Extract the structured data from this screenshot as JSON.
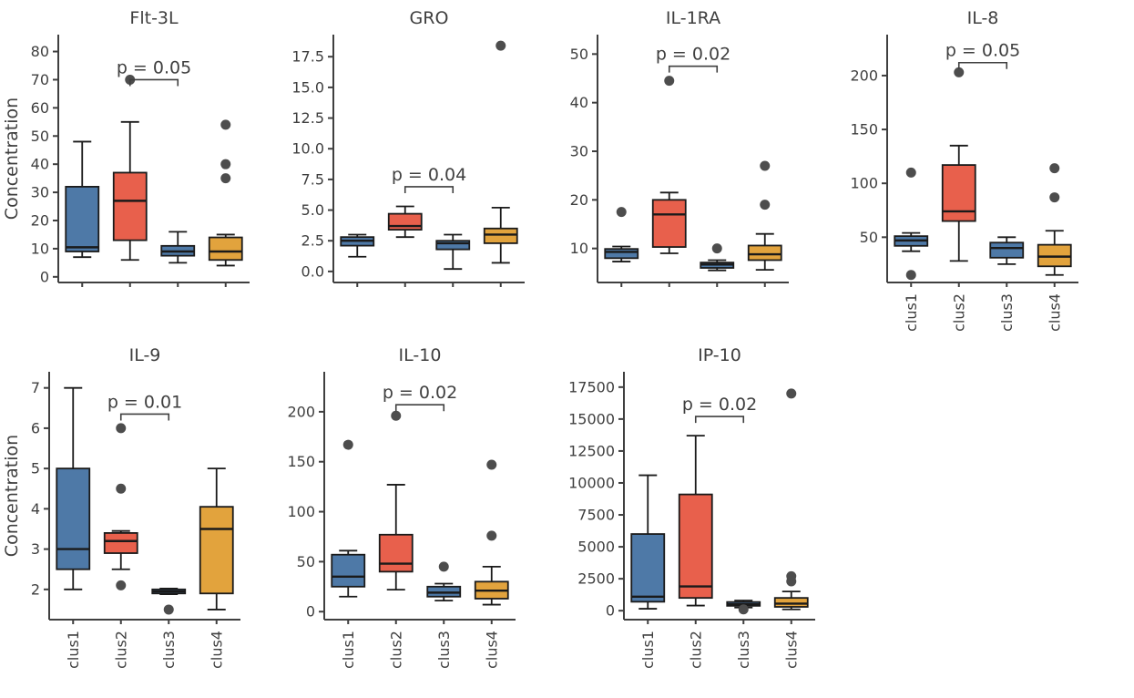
{
  "chart_data": {
    "type": "boxplot",
    "layout": "facet-grid-2x4",
    "ylabel": "Concentration",
    "categories": [
      "clus1",
      "clus2",
      "clus3",
      "clus4"
    ],
    "box_colors": [
      "#4e79a7",
      "#e8604c",
      "#4e79a7",
      "#e2a33d"
    ],
    "outlier_color": "#4d4d4d",
    "axis_color": "#3f3f3f",
    "box_stroke": "#1a1a1a",
    "panels": [
      {
        "title": "Flt-3L",
        "row": 0,
        "p_label": "p = 0.05",
        "p_groups": [
          1,
          2
        ],
        "p_y": 70,
        "ylim": [
          -2,
          86
        ],
        "yticks": [
          0,
          10,
          20,
          30,
          40,
          50,
          60,
          70,
          80
        ],
        "show_xlabels": false,
        "show_ylabel": true,
        "boxes": [
          {
            "whislo": 7,
            "q1": 9,
            "med": 10.5,
            "q3": 32,
            "whishi": 48,
            "outliers": []
          },
          {
            "whislo": 6,
            "q1": 13,
            "med": 27,
            "q3": 37,
            "whishi": 55,
            "outliers": [
              70
            ]
          },
          {
            "whislo": 5,
            "q1": 7.5,
            "med": 9,
            "q3": 11,
            "whishi": 16,
            "outliers": []
          },
          {
            "whislo": 4,
            "q1": 6,
            "med": 9,
            "q3": 14,
            "whishi": 15,
            "outliers": [
              35,
              40,
              54
            ]
          }
        ]
      },
      {
        "title": "GRO",
        "row": 0,
        "p_label": "p = 0.04",
        "p_groups": [
          1,
          2
        ],
        "p_y": 6.9,
        "ylim": [
          -0.9,
          19.3
        ],
        "yticks": [
          0,
          2.5,
          5,
          7.5,
          10,
          12.5,
          15,
          17.5
        ],
        "ytick_labels": [
          "0.0",
          "2.5",
          "5.0",
          "7.5",
          "10.0",
          "12.5",
          "15.0",
          "17.5"
        ],
        "show_xlabels": false,
        "show_ylabel": false,
        "boxes": [
          {
            "whislo": 1.2,
            "q1": 2.1,
            "med": 2.5,
            "q3": 2.8,
            "whishi": 3.0,
            "outliers": []
          },
          {
            "whislo": 2.8,
            "q1": 3.4,
            "med": 3.7,
            "q3": 4.7,
            "whishi": 5.3,
            "outliers": []
          },
          {
            "whislo": 0.2,
            "q1": 1.8,
            "med": 2.3,
            "q3": 2.5,
            "whishi": 3.0,
            "outliers": []
          },
          {
            "whislo": 0.7,
            "q1": 2.3,
            "med": 3.0,
            "q3": 3.5,
            "whishi": 5.2,
            "outliers": [
              18.4
            ]
          }
        ]
      },
      {
        "title": "IL-1RA",
        "row": 0,
        "p_label": "p = 0.02",
        "p_groups": [
          1,
          2
        ],
        "p_y": 47.5,
        "ylim": [
          3,
          54
        ],
        "yticks": [
          10,
          20,
          30,
          40,
          50
        ],
        "show_xlabels": false,
        "show_ylabel": false,
        "boxes": [
          {
            "whislo": 7.3,
            "q1": 8,
            "med": 9.3,
            "q3": 9.9,
            "whishi": 10.4,
            "outliers": [
              17.5
            ]
          },
          {
            "whislo": 9,
            "q1": 10.3,
            "med": 17,
            "q3": 20,
            "whishi": 21.5,
            "outliers": [
              44.5
            ]
          },
          {
            "whislo": 5.5,
            "q1": 6,
            "med": 6.7,
            "q3": 7.1,
            "whishi": 7.6,
            "outliers": [
              10
            ]
          },
          {
            "whislo": 5.6,
            "q1": 7.6,
            "med": 8.8,
            "q3": 10.6,
            "whishi": 13,
            "outliers": [
              19,
              27
            ]
          }
        ]
      },
      {
        "title": "IL-8",
        "row": 0,
        "p_label": "p = 0.05",
        "p_groups": [
          1,
          2
        ],
        "p_y": 212,
        "ylim": [
          8,
          238
        ],
        "yticks": [
          50,
          100,
          150,
          200
        ],
        "show_xlabels": true,
        "show_ylabel": false,
        "boxes": [
          {
            "whislo": 37,
            "q1": 42,
            "med": 47,
            "q3": 51,
            "whishi": 54,
            "outliers": [
              110,
              15
            ]
          },
          {
            "whislo": 28,
            "q1": 65,
            "med": 74,
            "q3": 117,
            "whishi": 135,
            "outliers": [
              203
            ]
          },
          {
            "whislo": 25,
            "q1": 31,
            "med": 40,
            "q3": 45,
            "whishi": 50,
            "outliers": []
          },
          {
            "whislo": 15,
            "q1": 23,
            "med": 32,
            "q3": 43,
            "whishi": 56,
            "outliers": [
              87,
              114
            ]
          }
        ]
      },
      {
        "title": "IL-9",
        "row": 1,
        "p_label": "p = 0.01",
        "p_groups": [
          1,
          2
        ],
        "p_y": 6.35,
        "ylim": [
          1.25,
          7.4
        ],
        "yticks": [
          2,
          3,
          4,
          5,
          6,
          7
        ],
        "show_xlabels": true,
        "show_ylabel": true,
        "boxes": [
          {
            "whislo": 2.0,
            "q1": 2.5,
            "med": 3.0,
            "q3": 5.0,
            "whishi": 7.0,
            "outliers": []
          },
          {
            "whislo": 2.5,
            "q1": 2.9,
            "med": 3.2,
            "q3": 3.4,
            "whishi": 3.45,
            "outliers": [
              6.0,
              4.5,
              2.1
            ]
          },
          {
            "whislo": 1.88,
            "q1": 1.9,
            "med": 1.95,
            "q3": 2.0,
            "whishi": 2.02,
            "outliers": [
              1.5
            ]
          },
          {
            "whislo": 1.5,
            "q1": 1.9,
            "med": 3.5,
            "q3": 4.05,
            "whishi": 5.0,
            "outliers": []
          }
        ]
      },
      {
        "title": "IL-10",
        "row": 1,
        "p_label": "p = 0.02",
        "p_groups": [
          1,
          2
        ],
        "p_y": 207,
        "ylim": [
          -8,
          240
        ],
        "yticks": [
          0,
          50,
          100,
          150,
          200
        ],
        "show_xlabels": true,
        "show_ylabel": false,
        "boxes": [
          {
            "whislo": 15,
            "q1": 25,
            "med": 35,
            "q3": 57,
            "whishi": 61,
            "outliers": [
              167
            ]
          },
          {
            "whislo": 22,
            "q1": 40,
            "med": 48,
            "q3": 77,
            "whishi": 127,
            "outliers": [
              196
            ]
          },
          {
            "whislo": 11,
            "q1": 15,
            "med": 19,
            "q3": 25,
            "whishi": 28,
            "outliers": [
              45
            ]
          },
          {
            "whislo": 7,
            "q1": 13,
            "med": 21,
            "q3": 30,
            "whishi": 45,
            "outliers": [
              76,
              147
            ]
          }
        ]
      },
      {
        "title": "IP-10",
        "row": 1,
        "p_label": "p = 0.02",
        "p_groups": [
          1,
          2
        ],
        "p_y": 15200,
        "ylim": [
          -700,
          18700
        ],
        "yticks": [
          0,
          2500,
          5000,
          7500,
          10000,
          12500,
          15000,
          17500
        ],
        "show_xlabels": true,
        "show_ylabel": false,
        "boxes": [
          {
            "whislo": 150,
            "q1": 700,
            "med": 1100,
            "q3": 6000,
            "whishi": 10600,
            "outliers": []
          },
          {
            "whislo": 400,
            "q1": 1000,
            "med": 1900,
            "q3": 9100,
            "whishi": 13700,
            "outliers": []
          },
          {
            "whislo": 250,
            "q1": 380,
            "med": 500,
            "q3": 680,
            "whishi": 800,
            "outliers": [
              100
            ]
          },
          {
            "whislo": 100,
            "q1": 300,
            "med": 550,
            "q3": 1000,
            "whishi": 1500,
            "outliers": [
              2300,
              2700,
              17000
            ]
          }
        ]
      }
    ]
  }
}
